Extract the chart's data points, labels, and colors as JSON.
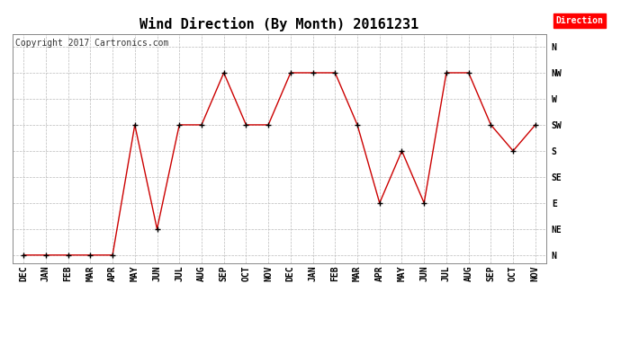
{
  "title": "Wind Direction (By Month) 20161231",
  "copyright": "Copyright 2017 Cartronics.com",
  "legend_label": "Direction",
  "legend_color": "#ff0000",
  "legend_text_color": "#ffffff",
  "x_labels": [
    "DEC",
    "JAN",
    "FEB",
    "MAR",
    "APR",
    "MAY",
    "JUN",
    "JUL",
    "AUG",
    "SEP",
    "OCT",
    "NOV",
    "DEC",
    "JAN",
    "FEB",
    "MAR",
    "APR",
    "MAY",
    "JUN",
    "JUL",
    "AUG",
    "SEP",
    "OCT",
    "NOV"
  ],
  "y_labels": [
    "N",
    "NE",
    "E",
    "SE",
    "S",
    "SW",
    "W",
    "NW",
    "N"
  ],
  "y_values": [
    0,
    1,
    2,
    3,
    4,
    5,
    6,
    7,
    8
  ],
  "direction_data": [
    0,
    0,
    0,
    0,
    0,
    5,
    1,
    5,
    5,
    7,
    5,
    5,
    7,
    7,
    7,
    5,
    2,
    4,
    2,
    7,
    7,
    5,
    4,
    5
  ],
  "line_color": "#cc0000",
  "marker_color": "#000000",
  "background_color": "#ffffff",
  "grid_color": "#bbbbbb",
  "title_fontsize": 11,
  "copyright_fontsize": 7,
  "tick_fontsize": 7
}
